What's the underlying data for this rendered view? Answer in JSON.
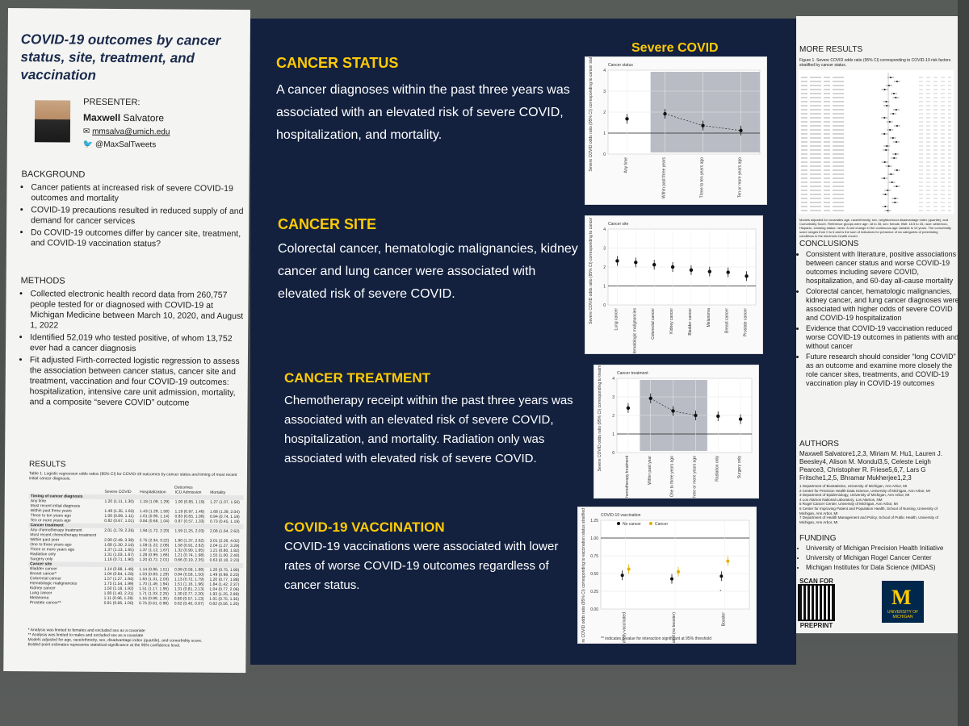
{
  "left": {
    "title": "COVID-19 outcomes by cancer status, site, treatment, and vaccination",
    "presenter_label": "PRESENTER:",
    "presenter_first": "Maxwell",
    "presenter_last": "Salvatore",
    "email": "mmsalva@umich.edu",
    "twitter": "@MaxSalTweets",
    "background_heading": "BACKGROUND",
    "background_items": [
      "Cancer patients at increased risk of severe COVID-19 outcomes and mortality",
      "COVID-19 precautions resulted in reduced supply of and demand for cancer services",
      "Do COVID-19 outcomes differ by cancer site, treatment, and COVID-19 vaccination status?"
    ],
    "methods_heading": "METHODS",
    "methods_items": [
      "Collected electronic health record data from 260,757 people tested for or diagnosed with COVID-19 at Michigan Medicine between March 10, 2020, and August 1, 2022",
      "Identified 52,019 who tested positive, of whom 13,752 ever had a cancer diagnosis",
      "Fit adjusted Firth-corrected logistic regression to assess the association between cancer status, cancer site and treatment, vaccination and four COVID-19 outcomes: hospitalization, intensive care unit admission, mortality, and a composite “severe COVID” outcome"
    ],
    "results_heading": "RESULTS",
    "table_caption": "Table 1. Logistic regression odds ratios (95% CI) for COVID-19 outcomes by cancer status and timing of most recent initial cancer diagnosis.",
    "table_outcomes": "Outcomes",
    "table_cols": [
      "Severe COVID",
      "Hospitalization",
      "ICU Admission",
      "Mortality"
    ],
    "table_rows": [
      {
        "label": "Timing of cancer diagnosis",
        "section": true
      },
      {
        "label": "Any time",
        "vals": [
          "1.20 (1.11, 1.30)",
          "1.18 (1.09, 1.29)",
          "1.00 (0.85, 1.19)",
          "1.27 (1.07, 1.50)"
        ]
      },
      {
        "label": "Most recent initial diagnosis",
        "vals": [
          "",
          "",
          "",
          ""
        ]
      },
      {
        "label": "Within past three years",
        "vals": [
          "1.48 (1.35, 1.63)",
          "1.43 (1.29, 1.58)",
          "1.19 (0.97, 1.46)",
          "1.68 (1.39, 2.04)"
        ]
      },
      {
        "label": "Three to ten years ago",
        "vals": [
          "1.00 (0.89, 1.11)",
          "1.01 (0.90, 1.14)",
          "0.83 (0.65, 1.06)",
          "0.94 (0.74, 1.19)"
        ]
      },
      {
        "label": "Ten or more years ago",
        "vals": [
          "0.82 (0.67, 1.01)",
          "0.84 (0.68, 1.04)",
          "0.87 (0.57, 1.33)",
          "0.73 (0.45, 1.19)"
        ]
      },
      {
        "label": "Cancer treatment",
        "section": true
      },
      {
        "label": "Any chemotherapy treatment",
        "vals": [
          "2.01 (1.79, 2.26)",
          "1.94 (1.72, 2.20)",
          "1.59 (1.25, 2.03)",
          "2.08 (1.64, 2.62)"
        ]
      },
      {
        "label": "Most recent chemotherapy treatment",
        "vals": [
          "",
          "",
          "",
          ""
        ]
      },
      {
        "label": "Within past year",
        "vals": [
          "2.90 (2.49, 3.38)",
          "2.75 (2.34, 3.22)",
          "1.90 (1.37, 2.62)",
          "3.01 (2.26, 4.02)"
        ]
      },
      {
        "label": "One to three years ago",
        "vals": [
          "1.68 (1.30, 2.16)",
          "1.59 (1.22, 2.08)",
          "1.58 (0.91, 2.62)",
          "2.04 (1.27, 3.29)"
        ]
      },
      {
        "label": "Three or more years ago",
        "vals": [
          "1.37 (1.13, 1.65)",
          "1.37 (1.12, 1.67)",
          "1.32 (0.90, 1.95)",
          "1.21 (0.80, 1.82)"
        ]
      },
      {
        "label": "Radiation only",
        "vals": [
          "1.31 (1.03, 1.67)",
          "1.28 (0.99, 1.66)",
          "1.21 (0.74, 1.98)",
          "1.55 (1.00, 2.40)"
        ]
      },
      {
        "label": "Surgery only",
        "vals": [
          "1.16 (0.71, 1.90)",
          "1.20 (0.72, 2.01)",
          "0.66 (0.19, 2.35)",
          "0.63 (0.18, 2.23)"
        ]
      },
      {
        "label": "Cancer site",
        "section": true
      },
      {
        "label": "Bladder cancer",
        "vals": [
          "1.14 (0.88, 1.48)",
          "1.14 (0.86, 1.51)",
          "0.99 (0.58, 1.68)",
          "1.20 (0.75, 1.90)"
        ]
      },
      {
        "label": "Breast cancer*",
        "vals": [
          "1.04 (0.84, 1.28)",
          "1.03 (0.83, 1.29)",
          "0.94 (0.58, 1.50)",
          "1.49 (0.99, 2.23)"
        ]
      },
      {
        "label": "Colorectal cancer",
        "vals": [
          "1.57 (1.27, 1.94)",
          "1.63 (1.31, 2.03)",
          "1.13 (0.72, 1.79)",
          "1.20 (0.77, 1.88)"
        ]
      },
      {
        "label": "Hematologic malignancies",
        "vals": [
          "1.75 (1.54, 1.99)",
          "1.70 (1.49, 1.94)",
          "1.51 (1.16, 1.96)",
          "1.84 (1.42, 2.37)"
        ]
      },
      {
        "label": "Kidney cancer",
        "vals": [
          "1.50 (1.18, 1.92)",
          "1.51 (1.17, 1.95)",
          "1.31 (0.81, 2.13)",
          "1.04 (0.77, 2.06)"
        ]
      },
      {
        "label": "Lung cancer",
        "vals": [
          "1.80 (1.40, 2.31)",
          "1.71 (1.33, 2.25)",
          "1.30 (0.77, 2.20)",
          "1.93 (1.25, 2.99)"
        ]
      },
      {
        "label": "Melanoma",
        "vals": [
          "1.11 (0.96, 1.28)",
          "1.16 (0.99, 1.35)",
          "0.80 (0.57, 1.13)",
          "1.01 (0.75, 1.35)"
        ]
      },
      {
        "label": "Prostate cancer**",
        "vals": [
          "0.81 (0.66, 1.00)",
          "0.76 (0.61, 0.96)",
          "0.62 (0.40, 0.97)",
          "0.82 (0.56, 1.20)"
        ]
      }
    ],
    "table_notes": [
      "* Analysis was limited to females and excluded sex as a covariate",
      "** Analysis was limited to males and excluded sex as a covariate",
      "Models adjusted for age, race/ethnicity, sex, disadvantage index (quartile), and comorbidity score.",
      "Bolded point estimates represents statistical significance at the 95% confidence level."
    ]
  },
  "center": {
    "severe_covid_label": "Severe COVID",
    "sections": [
      {
        "heading": "CANCER STATUS",
        "text": "A cancer diagnoses within the past three years was associated with an elevated risk of severe COVID, hospitalization, and mortality."
      },
      {
        "heading": "CANCER SITE",
        "text": "Colorectal cancer, hematologic malignancies, kidney cancer and lung cancer were associated with elevated risk of severe COVID."
      },
      {
        "heading": "CANCER TREATMENT",
        "text": "Chemotherapy receipt within the past three years was associated with an elevated risk of severe COVID, hospitalization, and mortality. Radiation only was associated with elevated risk of severe COVID."
      },
      {
        "heading": "COVID-19 VACCINATION",
        "text": "COVID-19 vaccinations were associated with lower rates of worse COVID-19 outcomes regardless of cancer status."
      }
    ]
  },
  "charts": {
    "status": {
      "title": "Cancer status",
      "ylabel": "Severe COVID odds ratio (95% CI) corresponding to cancer status",
      "categories": [
        "Any time",
        "Within past three years",
        "Three to ten years ago",
        "Ten or more years ago"
      ],
      "yticks": [
        "0",
        "1",
        "2",
        "3",
        "4"
      ]
    },
    "site": {
      "title": "Cancer site",
      "ylabel": "Severe COVID odds ratio (95% CI) corresponding to cancer site",
      "categories": [
        "Lung cancer",
        "Hematologic malignancies",
        "Colorectal cancer",
        "Kidney cancer",
        "Bladder cancer",
        "Melanoma",
        "Breast cancer",
        "Prostate cancer"
      ],
      "yticks": [
        "0",
        "1",
        "2",
        "3",
        "4"
      ]
    },
    "treatment": {
      "title": "Cancer treatment",
      "ylabel": "Severe COVID odds ratio (95% CI) corresponding to treatment",
      "categories": [
        "Any chemotherapy treatment",
        "Within past year",
        "One to three years ago",
        "Three or more years ago",
        "Radiation only",
        "Surgery only"
      ],
      "yticks": [
        "0",
        "1",
        "2",
        "3",
        "4"
      ]
    },
    "vaccination": {
      "title": "COVID-19 vaccination",
      "ylabel": "Severe COVID odds ratio (95% CI) corresponding to vaccination status stratified by cancer status",
      "categories": [
        "Partially vaccinated",
        "Fully vaccinated (no booster)",
        "Booster"
      ],
      "legend": [
        "No cancer",
        "Cancer"
      ],
      "yticks": [
        "0.00",
        "0.25",
        "0.50",
        "0.75",
        "1.00",
        "1.25"
      ],
      "footnote": "** indicates p-value for interaction significant at 95% threshold"
    }
  },
  "right": {
    "more_results_heading": "MORE RESULTS",
    "figure_caption": "Figure 1. Severe COVID odds ratio (95% CI) corresponding to COVID-19 risk factors stratified by cancer status.",
    "figure_note": "Models adjusted for covariates age, race/ethnicity, sex, neighborhood disadvantage index (quartile), and Comorbidity Score. Reference groups were age: 18 to 35, sex: female, BMI: 18.5 to 25, race: white/non-Hispanic, smoking status: never. A unit change in the continuous age variable is 10 years. The comorbidity score ranges from 0 to 6 and is the sum of indicators for presence of six categories of preexisting conditions in the electronic health record.",
    "conclusions_heading": "CONCLUSIONS",
    "conclusions_items": [
      "Consistent with literature, positive associations between cancer status and worse COVID-19 outcomes including severe COVID, hospitalization, and 60-day all-cause mortality",
      "Colorectal cancer, hematologic malignancies, kidney cancer, and lung cancer diagnoses were associated with higher odds of severe COVID and COVID-19 hospitalization",
      "Evidence that COVID-19 vaccination reduced worse COVID-19 outcomes in patients with and without cancer",
      "Future research should consider “long COVID” as an outcome and examine more closely the role cancer sites, treatments, and COVID-19 vaccination play in COVID-19 outcomes"
    ],
    "authors_heading": "AUTHORS",
    "authors_text": "Maxwell Salvatore1,2,3, Miriam M. Hu1, Lauren J. Beesley4, Alison M. Mondul3,5, Celeste Leigh Pearce3, Christopher R. Friese5,6,7, Lars G Fritsche1,2,5, Bhramar Mukherjee1,2,3",
    "affiliations": [
      "1 Department of Biostatistics, University of Michigan, Ann Arbor, MI",
      "2 Center for Precision Health Data Science, University of Michigan, Ann Arbor, MI",
      "3 Department of Epidemiology, University of Michigan, Ann Arbor, MI",
      "4 Los Alamos National Laboratory, Los Alamos, NM",
      "5 Rogel Cancer Center, University of Michigan, Ann Arbor, MI",
      "6 Center for Improving Patient and Population Health, School of Nursing, University of Michigan, Ann Arbor, MI",
      "7 Department of Health Management and Policy, School of Public Health, University of Michigan, Ann Arbor, MI"
    ],
    "funding_heading": "FUNDING",
    "funding_items": [
      "University of Michigan Precision Health Initiative",
      "University of Michigan Rogel Cancer Center",
      "Michigan Institutes for Data Science (MIDAS)"
    ],
    "scan_for": "SCAN FOR",
    "preprint": "PREPRINT",
    "logo_text": "UNIVERSITY OF MICHIGAN"
  }
}
